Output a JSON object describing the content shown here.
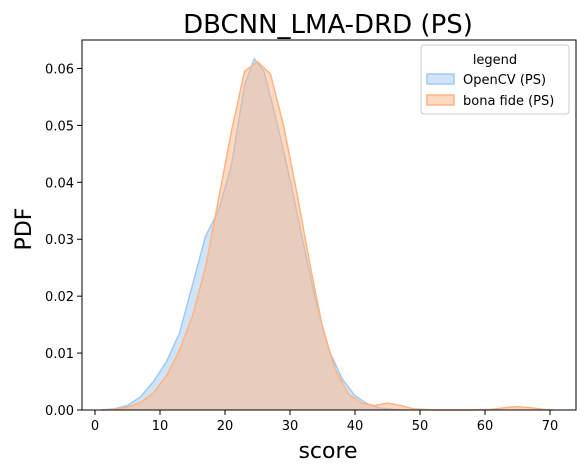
{
  "chart_data": {
    "type": "area",
    "title": "DBCNN_LMA-DRD (PS)",
    "xlabel": "score",
    "ylabel": "PDF",
    "xlim": [
      -2,
      74
    ],
    "ylim": [
      0,
      0.065
    ],
    "xticks": [
      0,
      10,
      20,
      30,
      40,
      50,
      60,
      70
    ],
    "yticks": [
      0.0,
      0.01,
      0.02,
      0.03,
      0.04,
      0.05,
      0.06
    ],
    "ytick_labels": [
      "0.00",
      "0.01",
      "0.02",
      "0.03",
      "0.04",
      "0.05",
      "0.06"
    ],
    "grid": false,
    "legend": {
      "title": "legend",
      "placement": "top-right"
    },
    "series": [
      {
        "name": "OpenCV (PS)",
        "fill_color": "#a1c9f4",
        "line_color": "#a1c9f4",
        "x": [
          1,
          3,
          5,
          7,
          9,
          11,
          13,
          15,
          17,
          19,
          21,
          23,
          24.5,
          26,
          28,
          30,
          32,
          34,
          36,
          38,
          40,
          42,
          44,
          46,
          48
        ],
        "y": [
          0.0,
          0.0002,
          0.0008,
          0.0023,
          0.005,
          0.0085,
          0.0135,
          0.022,
          0.0305,
          0.035,
          0.043,
          0.057,
          0.0617,
          0.0595,
          0.0505,
          0.0405,
          0.0295,
          0.019,
          0.0105,
          0.0055,
          0.0025,
          0.001,
          0.0003,
          0.0001,
          0.0
        ]
      },
      {
        "name": "bona fide (PS)",
        "fill_color": "#ffb482",
        "line_color": "#ffb482",
        "x": [
          1,
          3,
          5,
          7,
          9,
          11,
          13,
          15,
          17,
          19,
          21,
          23,
          25,
          27,
          29,
          31,
          33,
          35,
          37,
          39,
          41,
          43,
          45,
          47,
          49,
          52,
          55,
          58,
          61,
          63,
          65,
          67,
          69,
          70.5
        ],
        "y": [
          0.0,
          0.0001,
          0.0005,
          0.0013,
          0.003,
          0.006,
          0.0105,
          0.0165,
          0.025,
          0.037,
          0.049,
          0.0595,
          0.0612,
          0.059,
          0.05,
          0.0385,
          0.026,
          0.0145,
          0.007,
          0.0028,
          0.0012,
          0.0008,
          0.0012,
          0.0008,
          0.0002,
          0.0,
          0.0,
          0.0,
          0.0001,
          0.0004,
          0.0006,
          0.0004,
          0.0001,
          0.0
        ]
      }
    ]
  }
}
